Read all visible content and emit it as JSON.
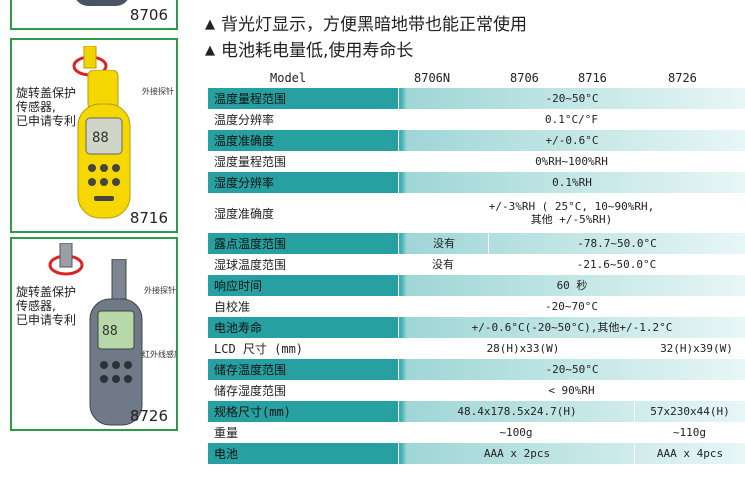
{
  "products": [
    {
      "model": "8706"
    },
    {
      "model": "8716",
      "note": "旋转盖保护\n传感器,\n已申请专利",
      "probe_label": "外接探针"
    },
    {
      "model": "8726",
      "note": "旋转盖保护\n传感器,\n已申请专利",
      "probe_label": "外接探针",
      "ir_label": "红外线感应"
    }
  ],
  "features": [
    {
      "text": "背光灯显示，方便黑暗地带也能正常使用"
    },
    {
      "text": "电池耗电量低,使用寿命长"
    }
  ],
  "table": {
    "header": {
      "label": "Model",
      "models": [
        "8706N",
        "8706",
        "8716",
        "8726"
      ]
    },
    "rows": [
      {
        "label": "温度量程范围",
        "cells": [
          "-20~50°C"
        ]
      },
      {
        "label": "温度分辨率",
        "cells": [
          "0.1°C/°F"
        ]
      },
      {
        "label": "温度准确度",
        "cells": [
          "+/-0.6°C"
        ]
      },
      {
        "label": "湿度量程范围",
        "cells": [
          "0%RH~100%RH"
        ]
      },
      {
        "label": "湿度分辨率",
        "cells": [
          "0.1%RH"
        ]
      },
      {
        "label": "湿度准确度",
        "cells": [
          "+/-3%RH ( 25°C, 10~90%RH,\n其他 +/-5%RH)"
        ]
      },
      {
        "label": "露点温度范围",
        "cells": [
          "没有",
          "-78.7~50.0°C"
        ]
      },
      {
        "label": "湿球温度范围",
        "cells": [
          "没有",
          "-21.6~50.0°C"
        ]
      },
      {
        "label": "响应时间",
        "cells": [
          "60 秒"
        ]
      },
      {
        "label": "自校准",
        "cells": [
          "-20~70°C"
        ]
      },
      {
        "label": "电池寿命",
        "cells": [
          "+/-0.6°C(-20~50°C),其他+/-1.2°C"
        ]
      },
      {
        "label": "LCD 尺寸 (mm)",
        "cells": [
          "28(H)x33(W)",
          "32(H)x39(W)"
        ]
      },
      {
        "label": "储存温度范围",
        "cells": [
          "-20~50°C"
        ]
      },
      {
        "label": "储存湿度范围",
        "cells": [
          "< 90%RH"
        ]
      },
      {
        "label": "规格尺寸(mm)",
        "cells": [
          "48.4x178.5x24.7(H)",
          "57x230x44(H)"
        ]
      },
      {
        "label": "重量",
        "cells": [
          "~100g",
          "~110g"
        ]
      },
      {
        "label": "电池",
        "cells": [
          "AAA x 2pcs",
          "AAA x 4pcs"
        ]
      }
    ]
  }
}
